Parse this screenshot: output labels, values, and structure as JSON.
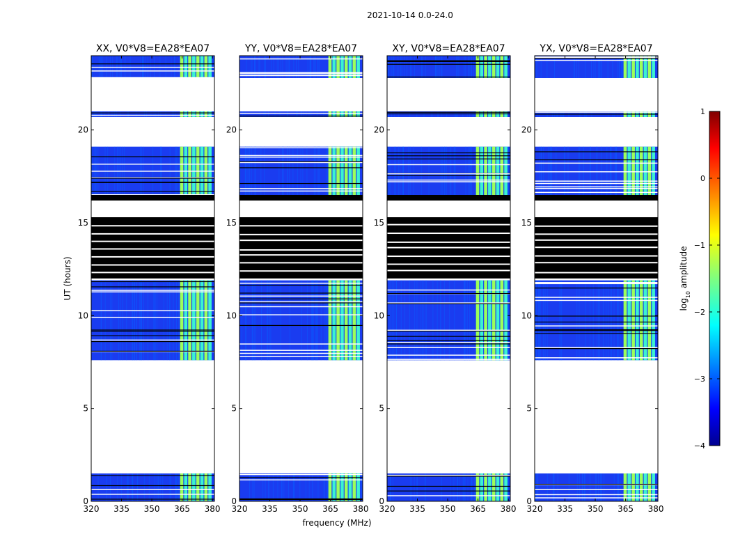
{
  "figure": {
    "suptitle": "2021-10-14 0.0-24.0",
    "xlabel": "frequency (MHz)",
    "ylabel": "UT (hours)"
  },
  "colors": {
    "bg_low": "#1a3cf0",
    "noise": "#0a5cff",
    "rfi_low": "#3cf2d0",
    "rfi_high": "#9cff5a",
    "bright": "#e8ff3a",
    "flagged": "#000000",
    "missing": "#ffffff"
  },
  "colorbar": {
    "label": "log10 amplitude",
    "label_base": "log",
    "label_sub": "10",
    "label_rest": " amplitude",
    "range": [
      -4,
      1
    ],
    "ticks": [
      {
        "value": 1,
        "label": "1"
      },
      {
        "value": 0,
        "label": "0"
      },
      {
        "value": -1,
        "label": "−1"
      },
      {
        "value": -2,
        "label": "−2"
      },
      {
        "value": -3,
        "label": "−3"
      },
      {
        "value": -4,
        "label": "−4"
      }
    ]
  },
  "chart_data": [
    {
      "type": "heatmap",
      "title": "XX, V0*V8=EA28*EA07",
      "xlim": [
        320,
        381
      ],
      "ylim": [
        0,
        24
      ],
      "xticks": [
        {
          "v": 320,
          "t": "320"
        },
        {
          "v": 335,
          "t": "335"
        },
        {
          "v": 350,
          "t": "350"
        },
        {
          "v": 365,
          "t": "365"
        },
        {
          "v": 380,
          "t": "380"
        }
      ],
      "yticks": [
        {
          "v": 0,
          "t": "0"
        },
        {
          "v": 5,
          "t": "5"
        },
        {
          "v": 10,
          "t": "10"
        },
        {
          "v": 15,
          "t": "15"
        },
        {
          "v": 20,
          "t": "20"
        }
      ],
      "data_ranges_hours": [
        [
          0,
          1.5
        ],
        [
          7.6,
          11.9
        ],
        [
          16.5,
          19.1
        ],
        [
          20.7,
          21.0
        ],
        [
          22.8,
          24
        ]
      ],
      "flagged_ranges_hours": [
        [
          12.0,
          15.3
        ],
        [
          16.2,
          16.5
        ]
      ],
      "rfi_band_MHz": [
        364,
        380
      ]
    },
    {
      "type": "heatmap",
      "title": "YY, V0*V8=EA28*EA07",
      "xlim": [
        320,
        381
      ],
      "ylim": [
        0,
        24
      ],
      "xticks": [
        {
          "v": 320,
          "t": "320"
        },
        {
          "v": 335,
          "t": "335"
        },
        {
          "v": 350,
          "t": "350"
        },
        {
          "v": 365,
          "t": "365"
        },
        {
          "v": 380,
          "t": "380"
        }
      ],
      "yticks": [
        {
          "v": 0,
          "t": "0"
        },
        {
          "v": 5,
          "t": "5"
        },
        {
          "v": 10,
          "t": "10"
        },
        {
          "v": 15,
          "t": "15"
        },
        {
          "v": 20,
          "t": "20"
        }
      ],
      "data_ranges_hours": [
        [
          0,
          1.5
        ],
        [
          7.6,
          11.9
        ],
        [
          16.5,
          19.1
        ],
        [
          20.7,
          21.0
        ],
        [
          22.8,
          24
        ]
      ],
      "flagged_ranges_hours": [
        [
          12.0,
          15.3
        ],
        [
          16.2,
          16.5
        ]
      ],
      "rfi_band_MHz": [
        364,
        380
      ]
    },
    {
      "type": "heatmap",
      "title": "XY, V0*V8=EA28*EA07",
      "xlim": [
        320,
        381
      ],
      "ylim": [
        0,
        24
      ],
      "xticks": [
        {
          "v": 320,
          "t": "320"
        },
        {
          "v": 335,
          "t": "335"
        },
        {
          "v": 350,
          "t": "350"
        },
        {
          "v": 365,
          "t": "365"
        },
        {
          "v": 380,
          "t": "380"
        }
      ],
      "yticks": [
        {
          "v": 0,
          "t": "0"
        },
        {
          "v": 5,
          "t": "5"
        },
        {
          "v": 10,
          "t": "10"
        },
        {
          "v": 15,
          "t": "15"
        },
        {
          "v": 20,
          "t": "20"
        }
      ],
      "data_ranges_hours": [
        [
          0,
          1.5
        ],
        [
          7.6,
          11.9
        ],
        [
          16.5,
          19.1
        ],
        [
          20.7,
          21.0
        ],
        [
          22.8,
          24
        ]
      ],
      "flagged_ranges_hours": [
        [
          12.0,
          15.3
        ],
        [
          16.2,
          16.5
        ]
      ],
      "rfi_band_MHz": [
        364,
        380
      ]
    },
    {
      "type": "heatmap",
      "title": "YX, V0*V8=EA28*EA07",
      "xlim": [
        320,
        381
      ],
      "ylim": [
        0,
        24
      ],
      "xticks": [
        {
          "v": 320,
          "t": "320"
        },
        {
          "v": 335,
          "t": "335"
        },
        {
          "v": 350,
          "t": "350"
        },
        {
          "v": 365,
          "t": "365"
        },
        {
          "v": 380,
          "t": "380"
        }
      ],
      "yticks": [
        {
          "v": 0,
          "t": "0"
        },
        {
          "v": 5,
          "t": "5"
        },
        {
          "v": 10,
          "t": "10"
        },
        {
          "v": 15,
          "t": "15"
        },
        {
          "v": 20,
          "t": "20"
        }
      ],
      "data_ranges_hours": [
        [
          0,
          1.5
        ],
        [
          7.6,
          11.9
        ],
        [
          16.5,
          19.1
        ],
        [
          20.7,
          21.0
        ],
        [
          22.8,
          24
        ]
      ],
      "flagged_ranges_hours": [
        [
          12.0,
          15.3
        ],
        [
          16.2,
          16.5
        ]
      ],
      "rfi_band_MHz": [
        364,
        380
      ]
    }
  ]
}
